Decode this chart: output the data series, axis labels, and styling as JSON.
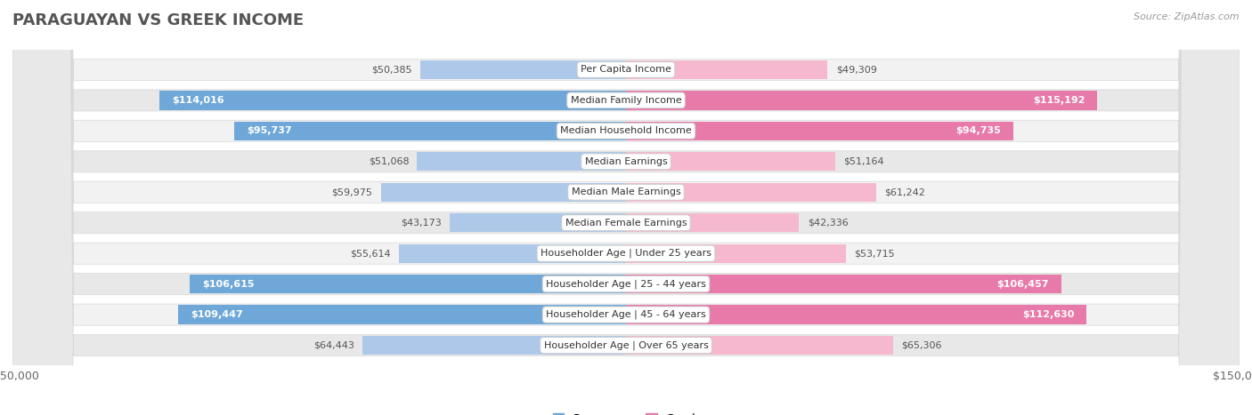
{
  "title": "PARAGUAYAN VS GREEK INCOME",
  "source": "Source: ZipAtlas.com",
  "categories": [
    "Per Capita Income",
    "Median Family Income",
    "Median Household Income",
    "Median Earnings",
    "Median Male Earnings",
    "Median Female Earnings",
    "Householder Age | Under 25 years",
    "Householder Age | 25 - 44 years",
    "Householder Age | 45 - 64 years",
    "Householder Age | Over 65 years"
  ],
  "paraguayan_values": [
    50385,
    114016,
    95737,
    51068,
    59975,
    43173,
    55614,
    106615,
    109447,
    64443
  ],
  "greek_values": [
    49309,
    115192,
    94735,
    51164,
    61242,
    42336,
    53715,
    106457,
    112630,
    65306
  ],
  "paraguayan_labels": [
    "$50,385",
    "$114,016",
    "$95,737",
    "$51,068",
    "$59,975",
    "$43,173",
    "$55,614",
    "$106,615",
    "$109,447",
    "$64,443"
  ],
  "greek_labels": [
    "$49,309",
    "$115,192",
    "$94,735",
    "$51,164",
    "$61,242",
    "$42,336",
    "$53,715",
    "$106,457",
    "$112,630",
    "$65,306"
  ],
  "paraguayan_color_light": "#adc8e8",
  "paraguayan_color_dark": "#6fa8d8",
  "greek_color_light": "#f5b8ce",
  "greek_color_dark": "#e87aaa",
  "row_bg_color_odd": "#f2f2f2",
  "row_bg_color_even": "#e8e8e8",
  "row_outline_color": "#d8d8d8",
  "xlim": 150000,
  "bar_height": 0.62,
  "label_inside_threshold": 70000,
  "background_color": "#ffffff",
  "title_fontsize": 13,
  "label_fontsize": 8,
  "category_fontsize": 8,
  "legend_fontsize": 9,
  "axis_fontsize": 9,
  "title_color": "#555555",
  "source_color": "#999999",
  "label_outside_color": "#555555",
  "label_inside_color": "#ffffff"
}
